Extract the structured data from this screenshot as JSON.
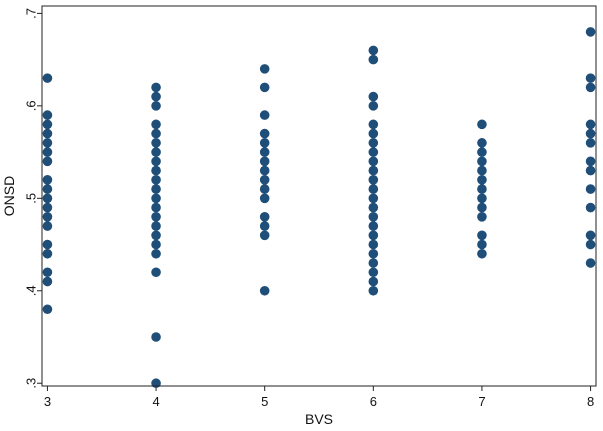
{
  "chart_data": {
    "type": "scatter",
    "title": "",
    "xlabel": "BVS",
    "ylabel": "ONSD",
    "xlim": [
      2.95,
      8.05
    ],
    "ylim": [
      0.297,
      0.708
    ],
    "xticks": [
      "3",
      "4",
      "5",
      "6",
      "7",
      "8"
    ],
    "yticks": [
      ".3",
      ".4",
      ".5",
      ".6",
      ".7"
    ],
    "xtick_values": [
      3,
      4,
      5,
      6,
      7,
      8
    ],
    "ytick_values": [
      0.3,
      0.4,
      0.5,
      0.6,
      0.7
    ],
    "grid": false,
    "legend": "none",
    "marker_color": "#1f4e79",
    "groups": [
      {
        "x": 3,
        "y": [
          0.63,
          0.59,
          0.58,
          0.57,
          0.56,
          0.55,
          0.54,
          0.52,
          0.51,
          0.5,
          0.49,
          0.48,
          0.47,
          0.45,
          0.44,
          0.42,
          0.41,
          0.38
        ]
      },
      {
        "x": 4,
        "y": [
          0.62,
          0.61,
          0.6,
          0.58,
          0.57,
          0.56,
          0.55,
          0.54,
          0.53,
          0.52,
          0.51,
          0.5,
          0.49,
          0.48,
          0.47,
          0.46,
          0.45,
          0.44,
          0.42,
          0.35,
          0.3
        ]
      },
      {
        "x": 5,
        "y": [
          0.64,
          0.62,
          0.59,
          0.57,
          0.56,
          0.55,
          0.54,
          0.53,
          0.52,
          0.51,
          0.5,
          0.48,
          0.47,
          0.46,
          0.4
        ]
      },
      {
        "x": 6,
        "y": [
          0.66,
          0.65,
          0.61,
          0.6,
          0.58,
          0.57,
          0.56,
          0.55,
          0.54,
          0.53,
          0.52,
          0.51,
          0.5,
          0.49,
          0.48,
          0.47,
          0.46,
          0.45,
          0.44,
          0.43,
          0.42,
          0.41,
          0.4
        ]
      },
      {
        "x": 7,
        "y": [
          0.58,
          0.56,
          0.55,
          0.54,
          0.53,
          0.52,
          0.51,
          0.5,
          0.49,
          0.48,
          0.46,
          0.45,
          0.44
        ]
      },
      {
        "x": 8,
        "y": [
          0.68,
          0.63,
          0.62,
          0.58,
          0.57,
          0.56,
          0.54,
          0.53,
          0.51,
          0.49,
          0.46,
          0.45,
          0.43
        ]
      }
    ]
  }
}
